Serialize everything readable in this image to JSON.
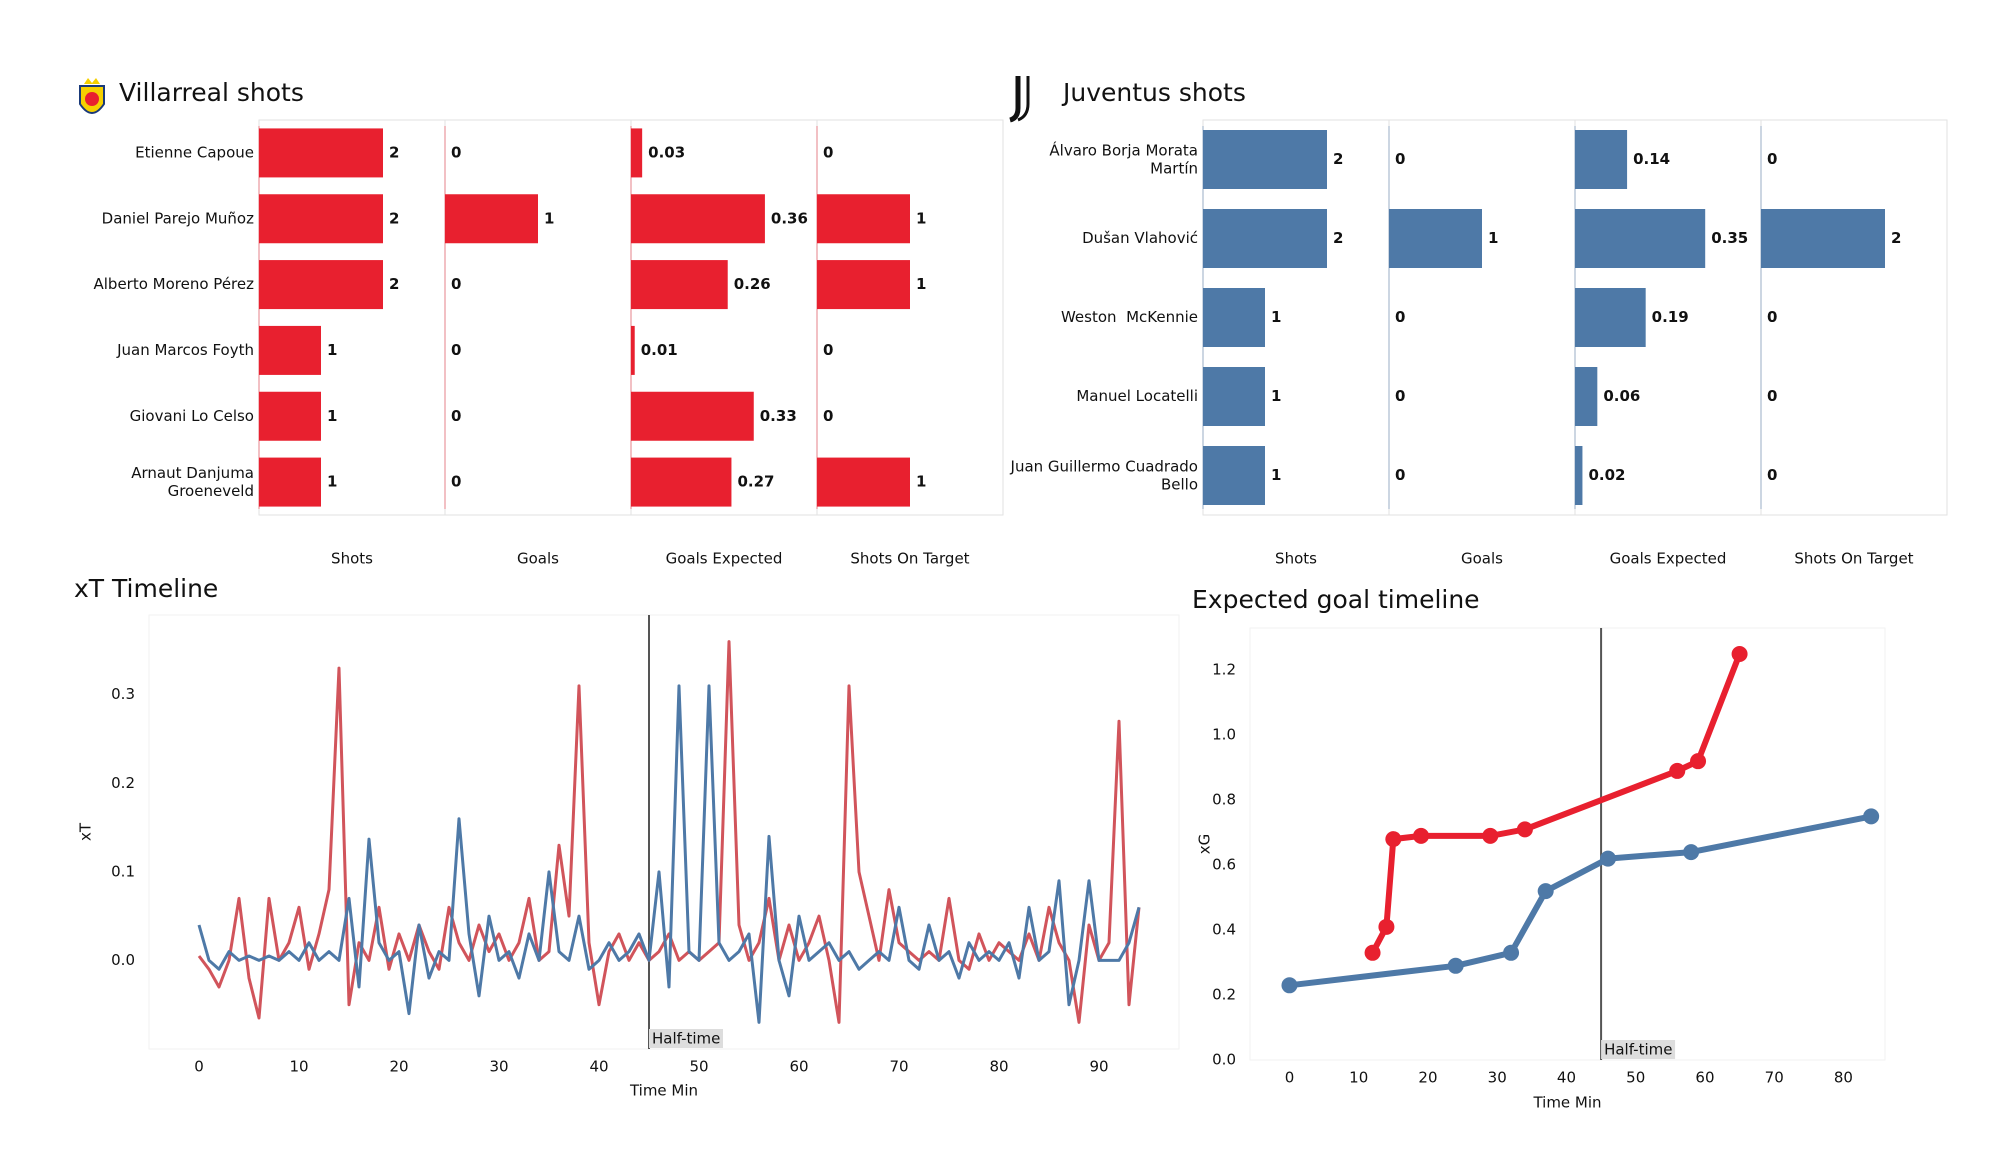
{
  "chart_data": [
    {
      "type": "bar",
      "orientation": "horizontal",
      "title": "Villarreal shots",
      "categories": [
        "Etienne Capoue",
        "Daniel Parejo Muñoz",
        "Alberto Moreno Pérez",
        "Juan Marcos Foyth",
        "Giovani Lo Celso",
        "Arnaut Danjuma\nGroeneveld"
      ],
      "series": [
        {
          "name": "Shots",
          "color": "#e8202f",
          "values": [
            2,
            2,
            2,
            1,
            1,
            1
          ],
          "xlim": [
            0,
            3
          ]
        },
        {
          "name": "Goals",
          "color": "#e8202f",
          "values": [
            0,
            1,
            0,
            0,
            0,
            0
          ],
          "xlim": [
            0,
            2
          ]
        },
        {
          "name": "Goals Expected",
          "color": "#e8202f",
          "values": [
            0.03,
            0.36,
            0.26,
            0.01,
            0.33,
            0.27
          ],
          "xlim": [
            0,
            0.5
          ]
        },
        {
          "name": "Shots On Target",
          "color": "#e8202f",
          "values": [
            0,
            1,
            1,
            0,
            0,
            1
          ],
          "xlim": [
            0,
            2
          ]
        }
      ]
    },
    {
      "type": "bar",
      "orientation": "horizontal",
      "title": "Juventus shots",
      "categories": [
        "Álvaro Borja Morata\nMartín",
        "Dušan Vlahović",
        "Weston  McKennie",
        "Manuel Locatelli",
        "Juan Guillermo Cuadrado\nBello"
      ],
      "series": [
        {
          "name": "Shots",
          "color": "#4e79a7",
          "values": [
            2,
            2,
            1,
            1,
            1
          ],
          "xlim": [
            0,
            3
          ]
        },
        {
          "name": "Goals",
          "color": "#4e79a7",
          "values": [
            0,
            1,
            0,
            0,
            0
          ],
          "xlim": [
            0,
            2
          ]
        },
        {
          "name": "Goals Expected",
          "color": "#4e79a7",
          "values": [
            0.14,
            0.35,
            0.19,
            0.06,
            0.02
          ],
          "xlim": [
            0,
            0.5
          ]
        },
        {
          "name": "Shots On Target",
          "color": "#4e79a7",
          "values": [
            0,
            2,
            0,
            0,
            0
          ],
          "xlim": [
            0,
            3
          ]
        }
      ]
    },
    {
      "type": "line",
      "title": "xT Timeline",
      "x_label": "Time Min",
      "y_label": "xT",
      "x": [
        0,
        1,
        2,
        3,
        4,
        5,
        6,
        7,
        8,
        9,
        10,
        11,
        12,
        13,
        14,
        15,
        16,
        17,
        18,
        19,
        20,
        21,
        22,
        23,
        24,
        25,
        26,
        27,
        28,
        29,
        30,
        31,
        32,
        33,
        34,
        35,
        36,
        37,
        38,
        39,
        40,
        41,
        42,
        43,
        44,
        45,
        46,
        47,
        48,
        49,
        50,
        51,
        52,
        53,
        54,
        55,
        56,
        57,
        58,
        59,
        60,
        61,
        62,
        63,
        64,
        65,
        66,
        67,
        68,
        69,
        70,
        71,
        72,
        73,
        74,
        75,
        76,
        77,
        78,
        79,
        80,
        81,
        82,
        83,
        84,
        85,
        86,
        87,
        88,
        89,
        90,
        91,
        92,
        93,
        94
      ],
      "series": [
        {
          "color": "#d1545b",
          "values": [
            0.005,
            -0.01,
            -0.03,
            0.0,
            0.07,
            -0.02,
            -0.065,
            0.07,
            0.0,
            0.02,
            0.06,
            -0.01,
            0.03,
            0.08,
            0.33,
            -0.05,
            0.02,
            0.0,
            0.06,
            -0.01,
            0.03,
            0.0,
            0.04,
            0.01,
            -0.01,
            0.06,
            0.02,
            0.0,
            0.04,
            0.01,
            0.03,
            0.0,
            0.02,
            0.07,
            0.0,
            0.01,
            0.13,
            0.05,
            0.31,
            0.02,
            -0.05,
            0.01,
            0.03,
            0.0,
            0.02,
            0.0,
            0.01,
            0.03,
            0.0,
            0.01,
            0.0,
            0.01,
            0.02,
            0.36,
            0.04,
            0.0,
            0.02,
            0.07,
            0.0,
            0.04,
            0.0,
            0.02,
            0.05,
            0.0,
            -0.07,
            0.31,
            0.1,
            0.05,
            0.0,
            0.08,
            0.02,
            0.01,
            0.0,
            0.01,
            0.0,
            0.07,
            0.0,
            -0.01,
            0.03,
            0.0,
            0.02,
            0.01,
            0.0,
            0.03,
            0.0,
            0.06,
            0.02,
            0.0,
            -0.07,
            0.04,
            0.0,
            0.02,
            0.27,
            -0.05,
            0.06
          ]
        },
        {
          "color": "#4e79a7",
          "values": [
            0.04,
            0.0,
            -0.01,
            0.01,
            0.0,
            0.005,
            0.0,
            0.005,
            0.0,
            0.01,
            0.0,
            0.02,
            0.0,
            0.01,
            0.0,
            0.07,
            -0.03,
            0.137,
            0.02,
            0.0,
            0.01,
            -0.06,
            0.04,
            -0.02,
            0.01,
            0.0,
            0.16,
            0.03,
            -0.04,
            0.05,
            0.0,
            0.01,
            -0.02,
            0.03,
            0.0,
            0.1,
            0.01,
            0.0,
            0.05,
            -0.01,
            0.0,
            0.02,
            0.0,
            0.01,
            0.03,
            0.0,
            0.1,
            -0.03,
            0.31,
            0.01,
            0.0,
            0.31,
            0.02,
            0.0,
            0.01,
            0.03,
            -0.07,
            0.14,
            0.0,
            -0.04,
            0.05,
            0.0,
            0.01,
            0.02,
            0.0,
            0.01,
            -0.01,
            0.0,
            0.01,
            0.0,
            0.06,
            0.0,
            -0.01,
            0.04,
            0.0,
            0.01,
            -0.02,
            0.02,
            0.0,
            0.01,
            0.0,
            0.02,
            -0.02,
            0.06,
            0.0,
            0.01,
            0.09,
            -0.05,
            0.0,
            0.09,
            0.0,
            0.0,
            0.0,
            0.02,
            0.06
          ]
        }
      ],
      "xlim": [
        -5,
        98
      ],
      "ylim": [
        -0.1,
        0.39
      ],
      "xticks": [
        0,
        10,
        20,
        30,
        40,
        50,
        60,
        70,
        80,
        90
      ],
      "yticks": [
        {
          "value": 0,
          "label": "0.0"
        },
        0.1,
        0.2,
        0.3
      ],
      "annotations": [
        {
          "text": "Half-time",
          "x": 45
        }
      ]
    },
    {
      "type": "line",
      "title": "Expected goal timeline",
      "x_label": "Time Min",
      "y_label": "xG",
      "markers": true,
      "series": [
        {
          "color": "#e8202f",
          "x": [
            12,
            14,
            15,
            19,
            29,
            34,
            56,
            59,
            65
          ],
          "values": [
            0.33,
            0.41,
            0.68,
            0.69,
            0.69,
            0.71,
            0.89,
            0.92,
            1.25
          ]
        },
        {
          "color": "#4e79a7",
          "x": [
            0,
            24,
            32,
            37,
            46,
            58,
            84
          ],
          "values": [
            0.23,
            0.29,
            0.33,
            0.52,
            0.62,
            0.64,
            0.75
          ]
        }
      ],
      "xlim": [
        -5.7,
        86
      ],
      "ylim": [
        0,
        1.33
      ],
      "xticks": [
        0,
        10,
        20,
        30,
        40,
        50,
        60,
        70,
        80
      ],
      "yticks": [
        {
          "value": 0,
          "label": "0.0"
        },
        0.2,
        0.4,
        0.6,
        0.8,
        {
          "value": 1,
          "label": "1.0"
        },
        1.2
      ],
      "annotations": [
        {
          "text": "Half-time",
          "x": 45
        }
      ]
    }
  ]
}
